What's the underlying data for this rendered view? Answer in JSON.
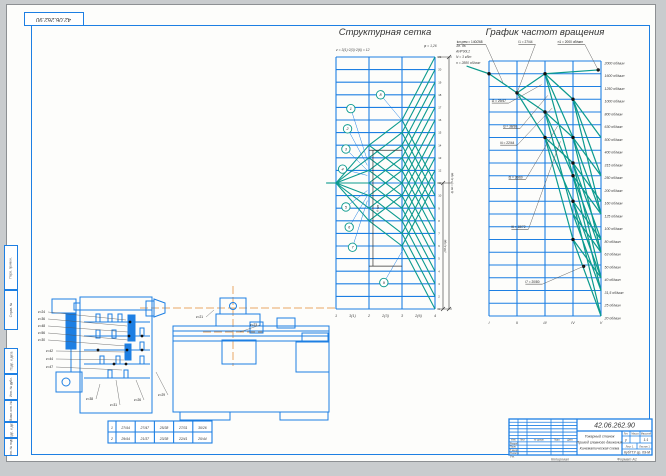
{
  "sheet": {
    "corner_stamp": "42.06.262.90",
    "colors": {
      "blue": "#1d7fe3",
      "teal": "#0b9a8d",
      "orange": "#e9a765",
      "ink": "#2b2b2b"
    },
    "margin_cells": [
      {
        "label": "Перв. примен."
      },
      {
        "label": "Справ. №"
      },
      {
        "label": "Подп. и дата"
      },
      {
        "label": "Инв. № дубл."
      },
      {
        "label": "Взам. инв. №"
      },
      {
        "label": "Подп. и дата"
      },
      {
        "label": "Инв. № подл."
      }
    ]
  },
  "chart_data": [
    {
      "type": "line",
      "name": "structural-grid",
      "title": "Структурная сетка",
      "formula": "z = 3(1)·2(3)·2(6) = 12",
      "note_right": "φ = 1,26",
      "x_axis": [
        "1",
        "3(1)",
        "2",
        "2(3)",
        "3",
        "2(6)",
        "4"
      ],
      "rows": 20,
      "cols": 3,
      "circle_labels": [
        "1",
        "2",
        "3",
        "4",
        "5",
        "6",
        "7",
        "8",
        "9"
      ],
      "bracket_label": "6·lgφ",
      "dim_inner": "(P2-1)·lgφ",
      "dim_outer": "lg Rn = (z-1)·lgφ",
      "row_scale_desc": true,
      "rays": [
        [
          -0.3,
          10,
          0,
          10
        ],
        [
          0,
          10,
          1,
          7
        ],
        [
          0,
          10,
          1,
          8
        ],
        [
          0,
          10,
          1,
          9
        ],
        [
          0,
          10,
          1,
          10
        ],
        [
          0,
          10,
          1,
          11
        ],
        [
          0,
          10,
          1,
          12
        ],
        [
          0,
          10,
          1,
          13
        ],
        [
          1,
          7,
          2,
          5
        ],
        [
          1,
          7,
          2,
          9
        ],
        [
          1,
          8,
          2,
          6
        ],
        [
          1,
          8,
          2,
          10
        ],
        [
          1,
          9,
          2,
          7
        ],
        [
          1,
          9,
          2,
          11
        ],
        [
          1,
          10,
          2,
          8
        ],
        [
          1,
          10,
          2,
          12
        ],
        [
          1,
          11,
          2,
          9
        ],
        [
          1,
          11,
          2,
          13
        ],
        [
          1,
          12,
          2,
          10
        ],
        [
          1,
          12,
          2,
          14
        ],
        [
          1,
          13,
          2,
          11
        ],
        [
          1,
          13,
          2,
          15
        ],
        [
          2,
          5,
          3,
          0
        ],
        [
          2,
          5,
          3,
          10
        ],
        [
          2,
          6,
          3,
          1
        ],
        [
          2,
          6,
          3,
          11
        ],
        [
          2,
          7,
          3,
          2
        ],
        [
          2,
          7,
          3,
          12
        ],
        [
          2,
          8,
          3,
          3
        ],
        [
          2,
          8,
          3,
          13
        ],
        [
          2,
          9,
          3,
          4
        ],
        [
          2,
          9,
          3,
          14
        ],
        [
          2,
          10,
          3,
          5
        ],
        [
          2,
          10,
          3,
          15
        ],
        [
          2,
          11,
          3,
          6
        ],
        [
          2,
          11,
          3,
          16
        ],
        [
          2,
          12,
          3,
          7
        ],
        [
          2,
          12,
          3,
          17
        ],
        [
          2,
          13,
          3,
          8
        ],
        [
          2,
          13,
          3,
          18
        ],
        [
          2,
          14,
          3,
          9
        ],
        [
          2,
          14,
          3,
          19
        ],
        [
          2,
          15,
          3,
          10
        ],
        [
          2,
          15,
          3,
          20
        ]
      ]
    },
    {
      "type": "line",
      "name": "speed-graph",
      "title": "График частот вращения",
      "x_axis": [
        "I",
        "II",
        "III",
        "IV",
        "V"
      ],
      "rows": 20,
      "cols": 4,
      "motor_note": [
        "Эл. дв.",
        "АИР90L2",
        "N = 3 кВт",
        "n = 2880 об/мин"
      ],
      "rpm_labels": [
        "2000 об/мин",
        "1600 об/мин",
        "1250 об/мин",
        "1000 об/мин",
        "800 об/мин",
        "630 об/мин",
        "500 об/мин",
        "400 об/мин",
        "315 об/мин",
        "250 об/мин",
        "200 об/мин",
        "160 об/мин",
        "125 об/мин",
        "100 об/мин",
        "80 об/мин",
        "63 об/мин",
        "50 об/мин",
        "40 об/мин",
        "31,5 об/мин",
        "25 об/мин",
        "20 об/мин"
      ],
      "top_labels": [
        {
          "text": "iкл.рем = 140/268",
          "tx": 0.5,
          "ty": 1.7,
          "lx": -1.15,
          "ly": -1.3
        },
        {
          "text": "i1 = 27/44",
          "tx": 1.0,
          "ty": 2.5,
          "lx": 1.05,
          "ly": -1.3
        },
        {
          "text": "n1 = 2000 об/мин",
          "tx": 3.9,
          "ty": 0.7,
          "lx": 2.45,
          "ly": -1.3
        }
      ],
      "inner_labels": [
        {
          "text": "i2 = 29/47",
          "tx": 1.88,
          "ty": 1.85,
          "lx": 0.1,
          "ly": 3.3
        },
        {
          "text": "i3 = 38/38",
          "tx": 2.1,
          "ty": 2.7,
          "lx": 0.5,
          "ly": 5.3
        },
        {
          "text": "i4 = 22/44",
          "tx": 2.25,
          "ty": 3.7,
          "lx": 0.4,
          "ly": 6.6
        },
        {
          "text": "i5 = 30/60",
          "tx": 2.45,
          "ty": 5.1,
          "lx": 0.7,
          "ly": 9.3
        },
        {
          "text": "i6 = 18/72",
          "tx": 2.55,
          "ty": 6.3,
          "lx": 0.8,
          "ly": 13.2
        },
        {
          "text": "i7 = 20/80",
          "tx": 3.38,
          "ty": 16.1,
          "lx": 1.3,
          "ly": 17.5
        }
      ],
      "dots": [
        [
          0,
          1
        ],
        [
          1,
          2.5
        ],
        [
          2,
          1
        ],
        [
          2,
          4
        ],
        [
          2,
          6
        ],
        [
          3,
          3
        ],
        [
          3,
          6
        ],
        [
          3,
          8
        ],
        [
          3,
          9
        ],
        [
          3,
          11
        ],
        [
          3,
          14
        ],
        [
          3.9,
          0.7
        ],
        [
          3.38,
          16.1
        ]
      ],
      "rays": [
        [
          -0.8,
          0.4,
          0,
          1
        ],
        [
          0,
          1,
          1,
          2.5
        ],
        [
          1,
          2.5,
          2,
          1
        ],
        [
          1,
          2.5,
          2,
          4
        ],
        [
          1,
          2.5,
          2,
          6
        ],
        [
          2,
          1,
          3.9,
          0.7
        ],
        [
          2,
          1,
          3,
          3
        ],
        [
          2,
          1,
          3,
          6
        ],
        [
          2,
          1,
          3,
          9
        ],
        [
          2,
          4,
          3,
          6
        ],
        [
          2,
          4,
          3,
          9
        ],
        [
          2,
          4,
          3,
          12
        ],
        [
          2,
          6,
          3,
          8
        ],
        [
          2,
          6,
          3,
          11
        ],
        [
          2,
          6,
          3,
          14
        ],
        [
          3,
          3,
          4,
          6
        ],
        [
          3,
          3,
          4,
          9
        ],
        [
          3,
          3,
          4,
          12
        ],
        [
          3,
          6,
          4,
          9
        ],
        [
          3,
          6,
          4,
          12
        ],
        [
          3,
          6,
          4,
          15
        ],
        [
          3,
          8,
          4,
          11
        ],
        [
          3,
          8,
          4,
          14
        ],
        [
          3,
          8,
          4,
          17
        ],
        [
          3,
          9,
          4,
          12
        ],
        [
          3,
          9,
          4,
          15
        ],
        [
          3,
          9,
          4,
          18
        ],
        [
          3,
          11,
          4,
          14
        ],
        [
          3,
          11,
          4,
          17
        ],
        [
          3,
          11,
          4,
          20
        ],
        [
          3,
          12,
          4,
          15
        ],
        [
          3,
          12,
          4,
          18
        ],
        [
          3,
          14,
          4,
          17
        ],
        [
          3,
          14,
          4,
          20
        ]
      ]
    }
  ],
  "kinematics": {
    "labels": [
      "z=24",
      "z=36",
      "z=48",
      "z=56",
      "z=30",
      "z=42",
      "z=44",
      "z=47",
      "z=38",
      "z=31",
      "z=26",
      "z=29",
      "z=21",
      "z=23"
    ],
    "gear_table": {
      "rows": [
        [
          "1",
          "27/44",
          "27/47",
          "25/38",
          "27/31",
          "30/26"
        ],
        [
          "2",
          "29/44",
          "21/37",
          "23/38",
          "22/41",
          "20/44"
        ]
      ]
    }
  },
  "title_block": {
    "doc_number": "42.06.262.90",
    "title_lines": [
      "Токарный станок",
      "Привод главного движения",
      "Кинематическая схема"
    ],
    "change_headers": [
      "Изм.",
      "Лист",
      "№ докум.",
      "Подп.",
      "Дата"
    ],
    "sign_rows": [
      "Разраб.",
      "Пров.",
      "Т.контр.",
      "Н.контр.",
      "Утв."
    ],
    "headers": {
      "lit": "Лит.",
      "mass": "Масса",
      "scale": "Масштаб"
    },
    "values": {
      "lit": "у",
      "mass": "",
      "scale": "1:1"
    },
    "sheet_label": "Лист 1",
    "sheets_label": "Листов 1",
    "org": "КубГТУ  гр. 09-М"
  },
  "footer": {
    "copied": "Копировал",
    "format": "Формат A1"
  }
}
